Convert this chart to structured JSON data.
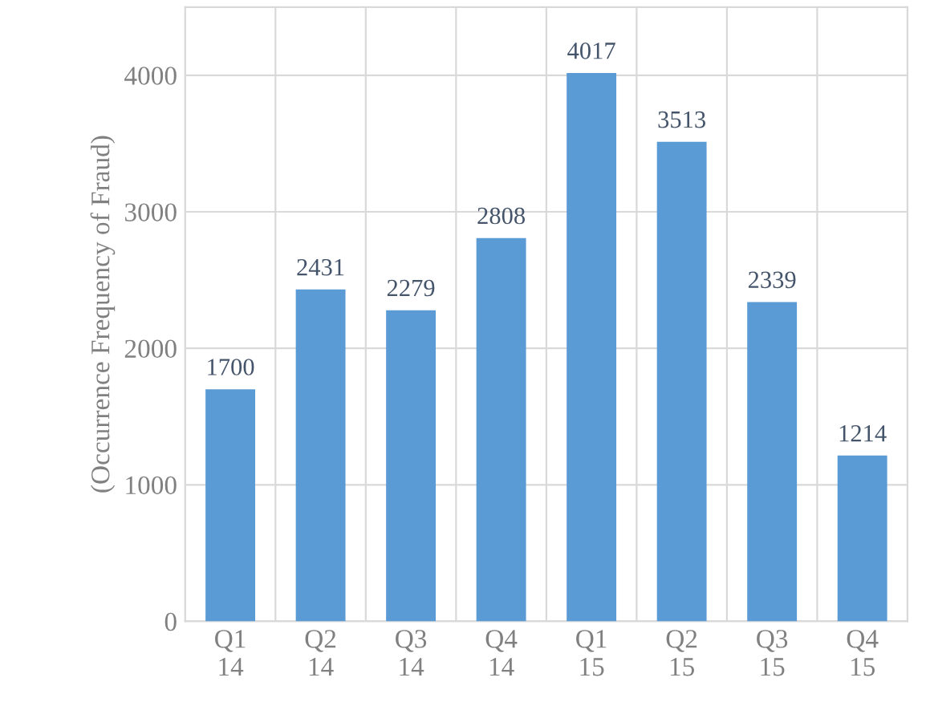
{
  "chart_data": {
    "type": "bar",
    "ylabel": "(Occurrence Frequency of Fraud)",
    "categories": [
      "Q1\n14",
      "Q2\n14",
      "Q3\n14",
      "Q4\n14",
      "Q1\n15",
      "Q2\n15",
      "Q3\n15",
      "Q4\n15"
    ],
    "values": [
      1700,
      2431,
      2279,
      2808,
      4017,
      3513,
      2339,
      1214
    ],
    "color": "#5b9bd5",
    "ylim": [
      0,
      4500
    ],
    "yticks": [
      0,
      1000,
      2000,
      3000,
      4000
    ],
    "grid": true,
    "data_labels": true
  }
}
